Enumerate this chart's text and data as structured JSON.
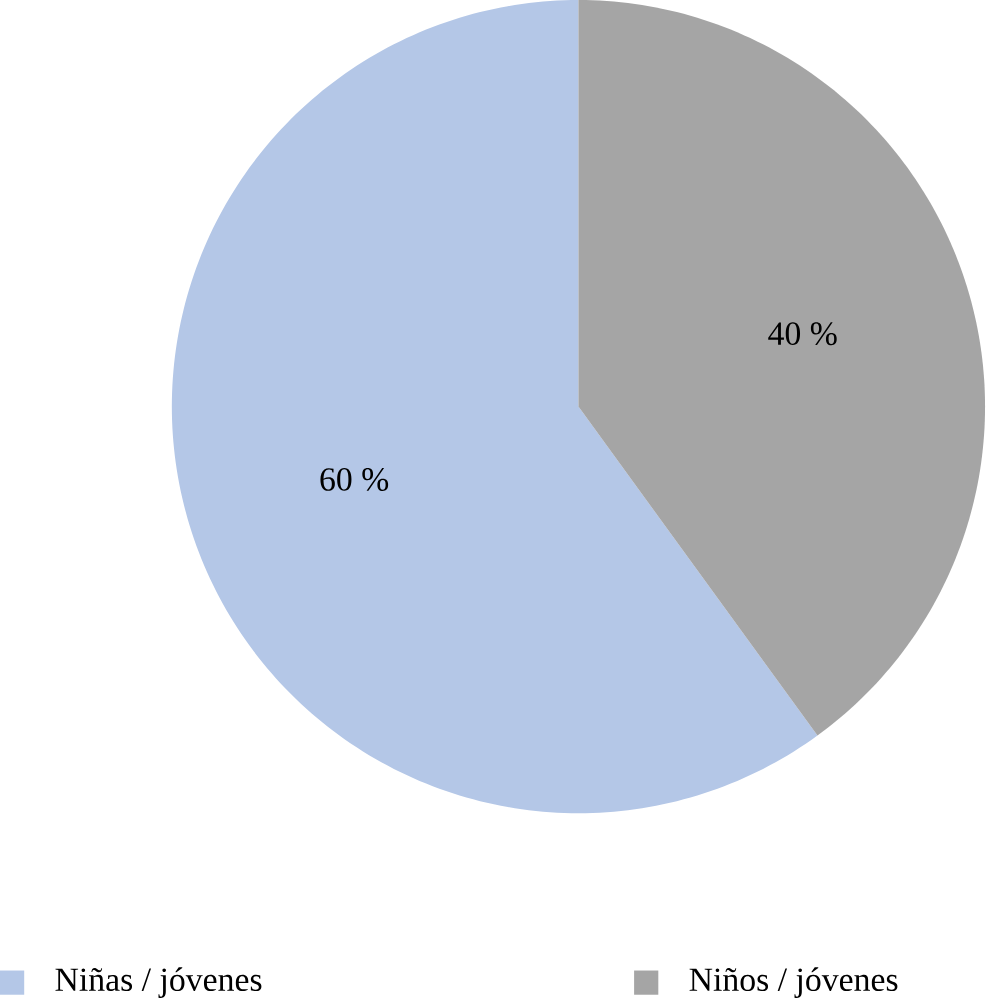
{
  "chart_data": {
    "type": "pie",
    "categories": [
      "Niñas / jóvenes",
      "Niños / jóvenes"
    ],
    "values": [
      60,
      40
    ],
    "colors": [
      "#b4c7e7",
      "#a5a5a5"
    ],
    "value_labels": [
      "60 %",
      "40 %"
    ],
    "legend": "bottom"
  }
}
